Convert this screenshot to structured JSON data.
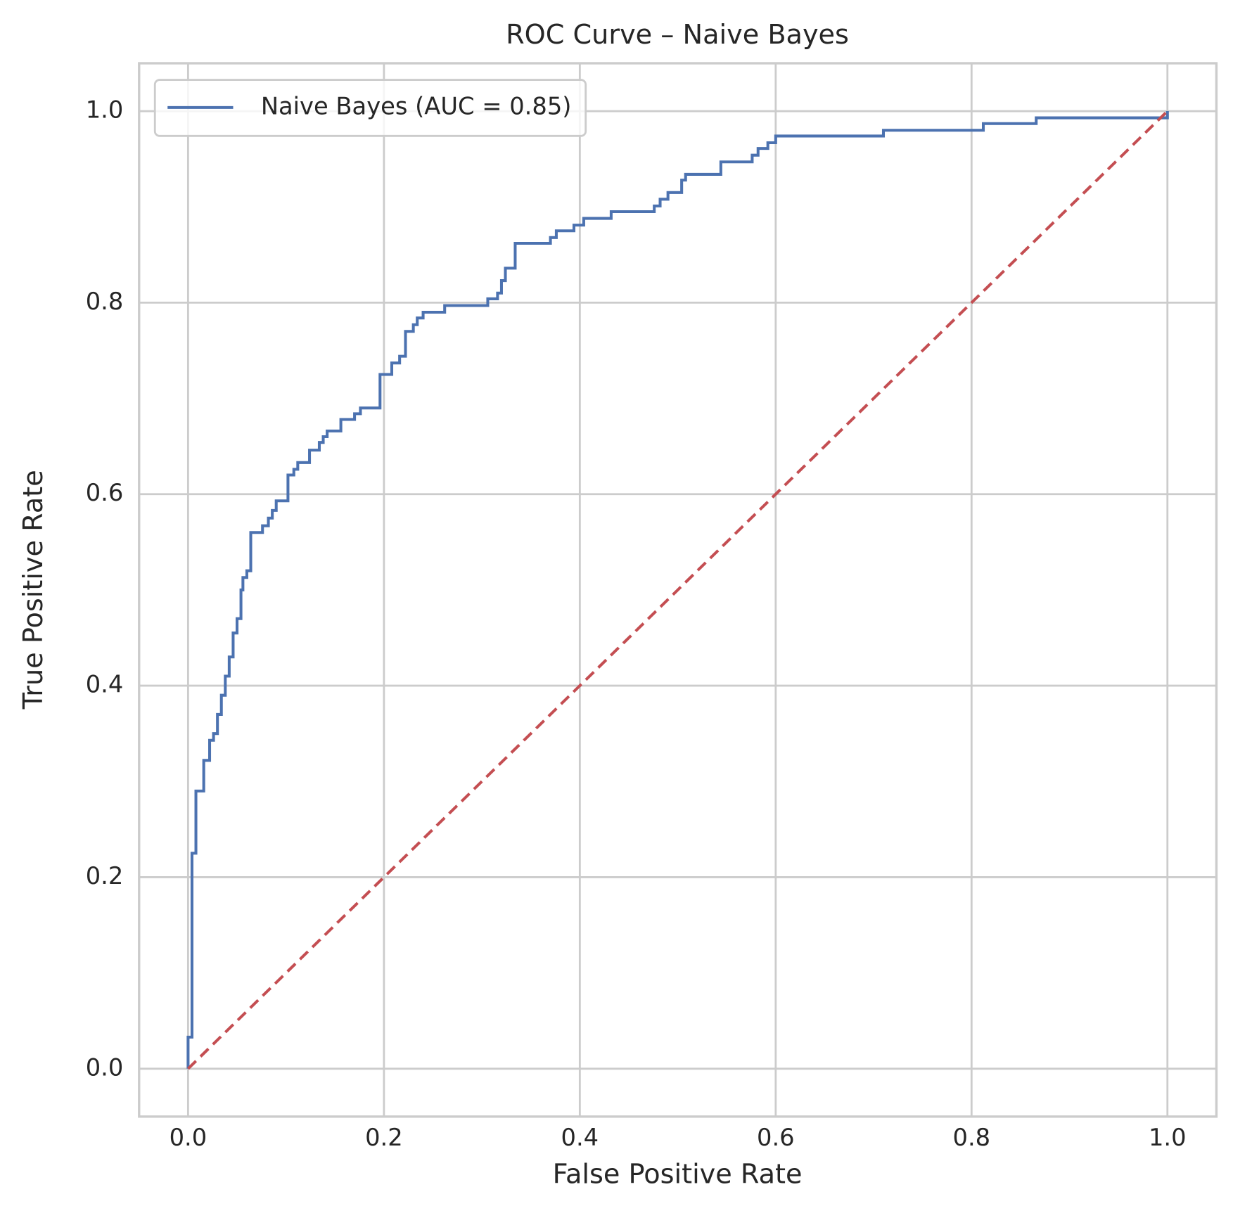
{
  "chart_data": {
    "type": "line",
    "title": "ROC Curve – Naive Bayes",
    "xlabel": "False Positive Rate",
    "ylabel": "True Positive Rate",
    "xlim": [
      -0.05,
      1.05
    ],
    "ylim": [
      -0.05,
      1.05
    ],
    "xticks": [
      {
        "value": 0,
        "label": "0.0"
      },
      0.2,
      0.4,
      0.6,
      0.8,
      {
        "value": 1,
        "label": "1.0"
      }
    ],
    "yticks": [
      {
        "value": 0,
        "label": "0.0"
      },
      0.2,
      0.4,
      0.6,
      0.8,
      {
        "value": 1,
        "label": "1.0"
      }
    ],
    "grid": true,
    "legend": "upper left",
    "series": [
      {
        "name": "Naive Bayes (AUC = 0.85)",
        "color": "#4c72b0",
        "style": "solid",
        "x": [
          0,
          0,
          0.004,
          0.004,
          0.008,
          0.008,
          0.016,
          0.016,
          0.022,
          0.022,
          0.026,
          0.026,
          0.03,
          0.03,
          0.034,
          0.034,
          0.038,
          0.038,
          0.042,
          0.042,
          0.046,
          0.046,
          0.05,
          0.05,
          0.054,
          0.054,
          0.056,
          0.056,
          0.06,
          0.06,
          0.064,
          0.064,
          0.076,
          0.076,
          0.082,
          0.082,
          0.086,
          0.086,
          0.09,
          0.09,
          0.102,
          0.102,
          0.108,
          0.108,
          0.112,
          0.112,
          0.124,
          0.124,
          0.134,
          0.134,
          0.138,
          0.138,
          0.142,
          0.142,
          0.156,
          0.156,
          0.17,
          0.17,
          0.176,
          0.176,
          0.196,
          0.196,
          0.208,
          0.208,
          0.216,
          0.216,
          0.222,
          0.222,
          0.23,
          0.23,
          0.234,
          0.234,
          0.24,
          0.24,
          0.262,
          0.262,
          0.306,
          0.306,
          0.316,
          0.316,
          0.32,
          0.32,
          0.324,
          0.324,
          0.334,
          0.334,
          0.37,
          0.37,
          0.376,
          0.376,
          0.394,
          0.394,
          0.404,
          0.404,
          0.432,
          0.432,
          0.476,
          0.476,
          0.482,
          0.482,
          0.49,
          0.49,
          0.504,
          0.504,
          0.508,
          0.508,
          0.544,
          0.544,
          0.576,
          0.576,
          0.582,
          0.582,
          0.592,
          0.592,
          0.6,
          0.6,
          0.71,
          0.71,
          0.812,
          0.812,
          0.866,
          0.866,
          1,
          1
        ],
        "values": [
          0,
          0.033,
          0.033,
          0.225,
          0.225,
          0.29,
          0.29,
          0.322,
          0.322,
          0.343,
          0.343,
          0.35,
          0.35,
          0.37,
          0.37,
          0.39,
          0.39,
          0.41,
          0.41,
          0.43,
          0.43,
          0.455,
          0.455,
          0.47,
          0.47,
          0.5,
          0.5,
          0.513,
          0.513,
          0.52,
          0.52,
          0.56,
          0.56,
          0.567,
          0.567,
          0.575,
          0.575,
          0.583,
          0.583,
          0.593,
          0.593,
          0.62,
          0.62,
          0.626,
          0.626,
          0.633,
          0.633,
          0.646,
          0.646,
          0.654,
          0.654,
          0.66,
          0.66,
          0.666,
          0.666,
          0.678,
          0.678,
          0.684,
          0.684,
          0.69,
          0.69,
          0.725,
          0.725,
          0.737,
          0.737,
          0.744,
          0.744,
          0.77,
          0.77,
          0.777,
          0.777,
          0.784,
          0.784,
          0.79,
          0.79,
          0.797,
          0.797,
          0.804,
          0.804,
          0.81,
          0.81,
          0.823,
          0.823,
          0.836,
          0.836,
          0.862,
          0.862,
          0.868,
          0.868,
          0.875,
          0.875,
          0.881,
          0.881,
          0.888,
          0.888,
          0.895,
          0.895,
          0.901,
          0.901,
          0.908,
          0.908,
          0.915,
          0.915,
          0.928,
          0.928,
          0.934,
          0.934,
          0.947,
          0.947,
          0.954,
          0.954,
          0.961,
          0.961,
          0.967,
          0.967,
          0.974,
          0.974,
          0.98,
          0.98,
          0.987,
          0.987,
          0.993,
          0.993,
          1
        ]
      },
      {
        "color": "#c44e52",
        "style": "dashed",
        "x": [
          0,
          1
        ],
        "values": [
          0,
          1
        ]
      }
    ]
  }
}
